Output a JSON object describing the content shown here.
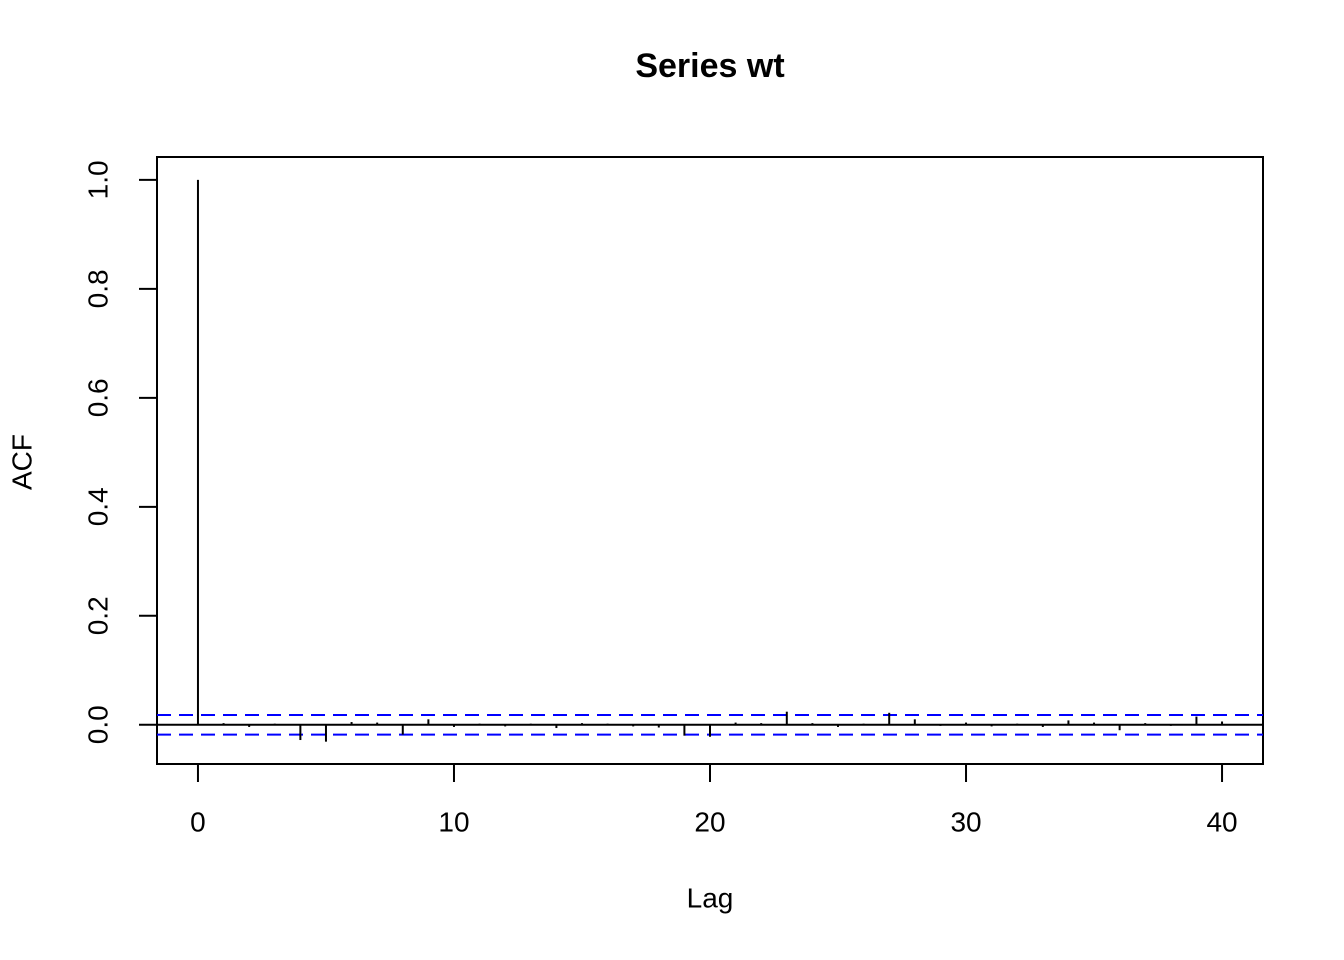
{
  "chart_data": {
    "type": "acf",
    "title": "Series  wt",
    "x_label": "Lag",
    "y_label": "ACF",
    "x": [
      0,
      1,
      2,
      3,
      4,
      5,
      6,
      7,
      8,
      9,
      10,
      11,
      12,
      13,
      14,
      15,
      16,
      17,
      18,
      19,
      20,
      21,
      22,
      23,
      24,
      25,
      26,
      27,
      28,
      29,
      30,
      31,
      32,
      33,
      34,
      35,
      36,
      37,
      38,
      39,
      40
    ],
    "values": [
      1,
      0.003,
      -0.004,
      0.002,
      -0.028,
      -0.031,
      0.005,
      0.004,
      -0.018,
      0.01,
      -0.004,
      0.002,
      -0.003,
      0.002,
      -0.006,
      0.003,
      0.002,
      -0.003,
      -0.005,
      -0.02,
      -0.022,
      0.004,
      0.003,
      0.024,
      0.003,
      -0.004,
      0.002,
      0.022,
      0.01,
      -0.002,
      0.004,
      -0.003,
      0.002,
      -0.004,
      0.008,
      0.004,
      -0.01,
      0.003,
      -0.002,
      0.015,
      0.006
    ],
    "color": "#000000",
    "ci_bounds": [
      0.018,
      -0.018
    ],
    "ci_color": "#0000ff",
    "xlim": [
      -1.6,
      41.6
    ],
    "xticks": [
      0,
      10,
      20,
      30,
      40
    ],
    "ylim": [
      -0.072,
      1.042
    ],
    "yticks": [
      {
        "value": 0,
        "label": "0.0"
      },
      0.2,
      0.4,
      0.6,
      0.8,
      {
        "value": 1,
        "label": "1.0"
      }
    ]
  }
}
